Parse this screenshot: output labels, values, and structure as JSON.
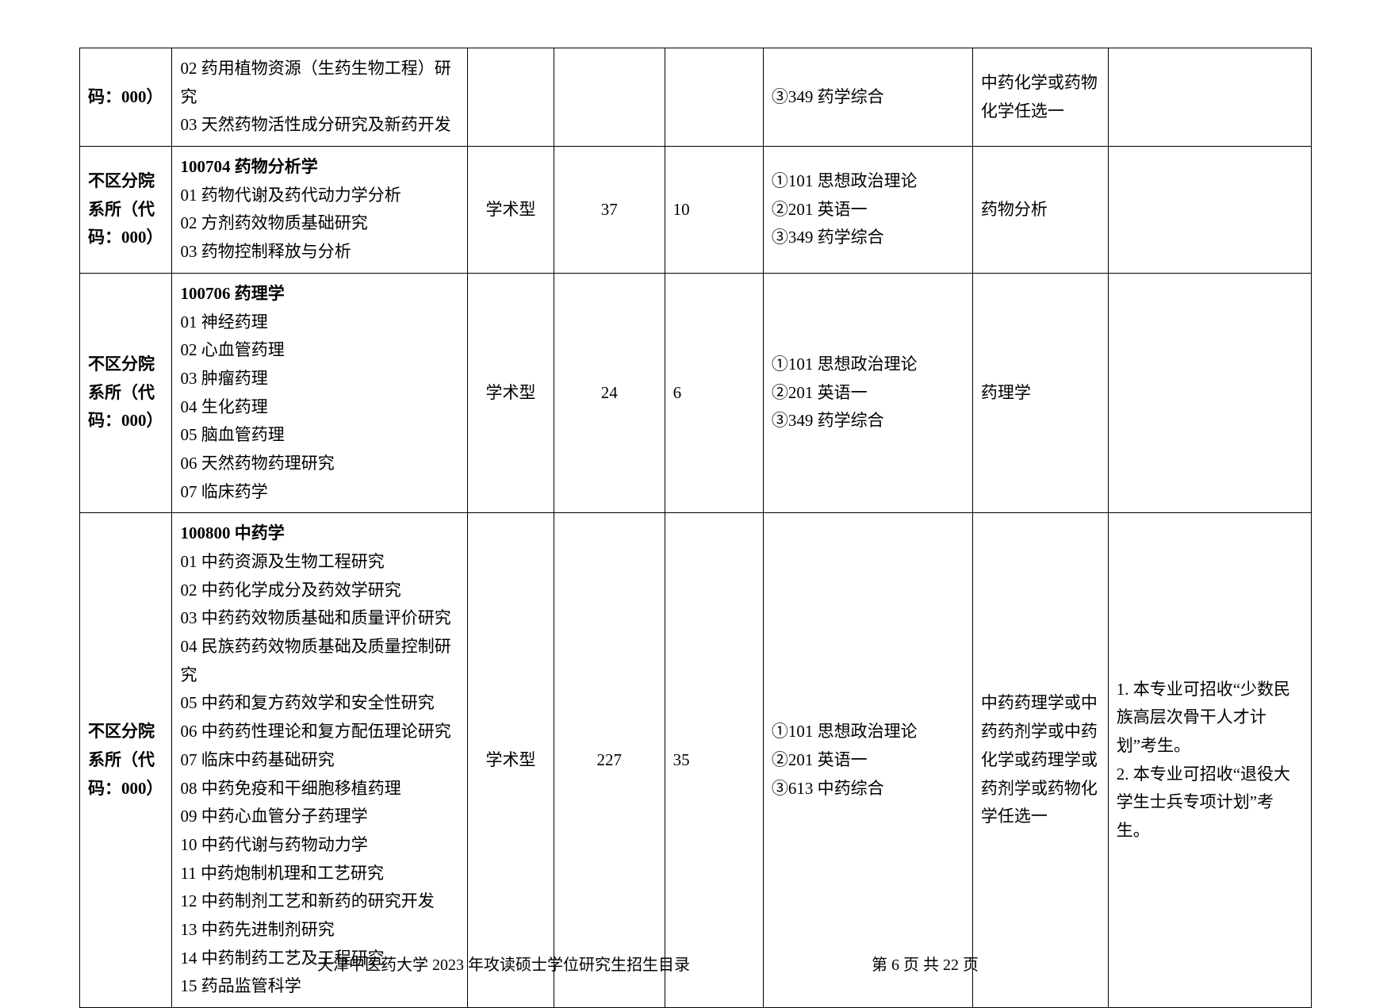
{
  "rows": [
    {
      "dept": "码：000）",
      "major_header": "",
      "directions": [
        "02 药用植物资源（生药生物工程）研究",
        "03 天然药物活性成分研究及新药开发"
      ],
      "type": "",
      "plan": "",
      "tuimian": "",
      "exams": [
        "③349 药学综合"
      ],
      "retest": "中药化学或药物化学任选一",
      "note": ""
    },
    {
      "dept": "不区分院系所（代码：000）",
      "major_header": "100704 药物分析学",
      "directions": [
        "01 药物代谢及药代动力学分析",
        "02 方剂药效物质基础研究",
        "03 药物控制释放与分析"
      ],
      "type": "学术型",
      "plan": "37",
      "tuimian": "10",
      "exams": [
        "①101 思想政治理论",
        "②201 英语一",
        "③349 药学综合"
      ],
      "retest": "药物分析",
      "note": ""
    },
    {
      "dept": "不区分院系所（代码：000）",
      "major_header": "100706  药理学",
      "directions": [
        "01 神经药理",
        "02 心血管药理",
        "03 肿瘤药理",
        "04 生化药理",
        "05 脑血管药理",
        "06 天然药物药理研究",
        "07 临床药学"
      ],
      "type": "学术型",
      "plan": "24",
      "tuimian": "6",
      "exams": [
        "①101 思想政治理论",
        "②201 英语一",
        "③349 药学综合"
      ],
      "retest": "药理学",
      "note": ""
    },
    {
      "dept": "不区分院系所（代码：000）",
      "major_header": "100800  中药学",
      "directions": [
        "01 中药资源及生物工程研究",
        "02 中药化学成分及药效学研究",
        "03 中药药效物质基础和质量评价研究",
        "04 民族药药效物质基础及质量控制研究",
        "05 中药和复方药效学和安全性研究",
        "06 中药药性理论和复方配伍理论研究",
        "07 临床中药基础研究",
        "08 中药免疫和干细胞移植药理",
        "09 中药心血管分子药理学",
        "10 中药代谢与药物动力学",
        "11 中药炮制机理和工艺研究",
        "12 中药制剂工艺和新药的研究开发",
        "13 中药先进制剂研究",
        "14 中药制药工艺及工程研究",
        "15 药品监管科学"
      ],
      "type": "学术型",
      "plan": "227",
      "tuimian": "35",
      "exams": [
        "①101 思想政治理论",
        "②201 英语一",
        "③613 中药综合"
      ],
      "retest": "中药药理学或中药药剂学或中药化学或药理学或药剂学或药物化学任选一",
      "note": "1. 本专业可招收“少数民族高层次骨干人才计划”考生。\n2. 本专业可招收“退役大学生士兵专项计划”考生。"
    }
  ],
  "footer_left": "天津中医药大学 2023 年攻读硕士学位研究生招生目录",
  "footer_right": "第 6 页 共 22 页"
}
